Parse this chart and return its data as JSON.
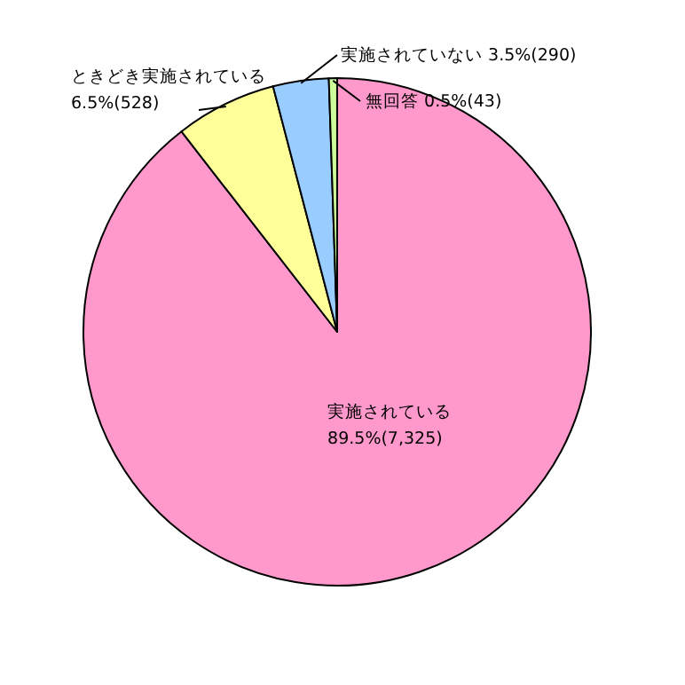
{
  "chart_data": {
    "type": "pie",
    "categories": [
      "実施されている",
      "ときどき実施されている",
      "実施されていない",
      "無回答"
    ],
    "values": [
      7325,
      528,
      290,
      43
    ],
    "value_labels": [
      "89.5%(7,325)",
      "6.5%(528)",
      "3.5%(290)",
      "0.5%(43)"
    ],
    "colors": [
      "#ff99cc",
      "#ffff99",
      "#99ccff",
      "#ccff99"
    ]
  }
}
